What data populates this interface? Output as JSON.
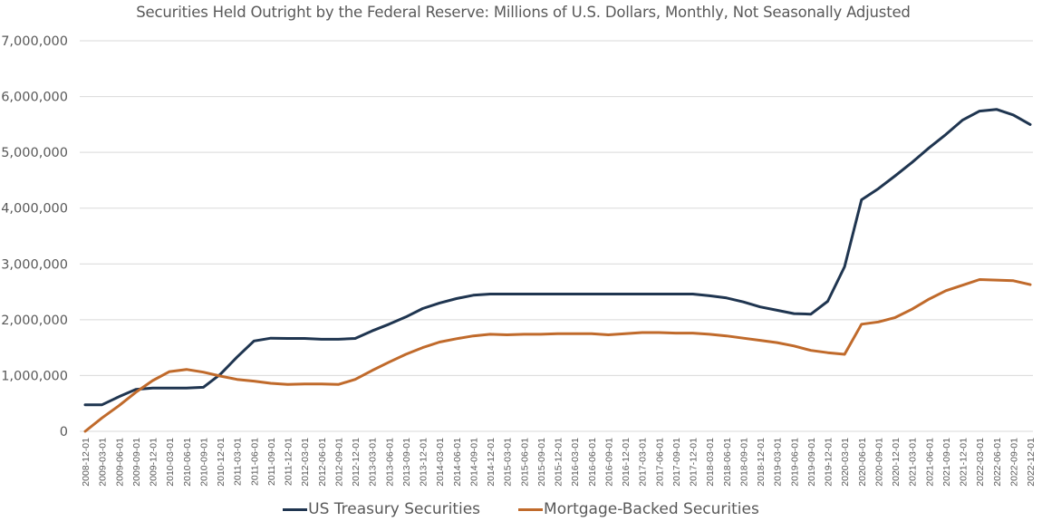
{
  "chart_data": {
    "type": "line",
    "title": "Securities Held Outright by the Federal Reserve: Millions of U.S. Dollars, Monthly, Not Seasonally Adjusted",
    "xlabel": "",
    "ylabel": "",
    "ylim": [
      0,
      7000000
    ],
    "yticks": [
      0,
      1000000,
      2000000,
      3000000,
      4000000,
      5000000,
      6000000,
      7000000
    ],
    "ytick_labels": [
      "0",
      "1,000,000",
      "2,000,000",
      "3,000,000",
      "4,000,000",
      "5,000,000",
      "6,000,000",
      "7,000,000"
    ],
    "grid": true,
    "legend_position": "bottom",
    "x": [
      "2008-12-01",
      "2009-03-01",
      "2009-06-01",
      "2009-09-01",
      "2009-12-01",
      "2010-03-01",
      "2010-06-01",
      "2010-09-01",
      "2010-12-01",
      "2011-03-01",
      "2011-06-01",
      "2011-09-01",
      "2011-12-01",
      "2012-03-01",
      "2012-06-01",
      "2012-09-01",
      "2012-12-01",
      "2013-03-01",
      "2013-06-01",
      "2013-09-01",
      "2013-12-01",
      "2014-03-01",
      "2014-06-01",
      "2014-09-01",
      "2014-12-01",
      "2015-03-01",
      "2015-06-01",
      "2015-09-01",
      "2015-12-01",
      "2016-03-01",
      "2016-06-01",
      "2016-09-01",
      "2016-12-01",
      "2017-03-01",
      "2017-06-01",
      "2017-09-01",
      "2017-12-01",
      "2018-03-01",
      "2018-06-01",
      "2018-09-01",
      "2018-12-01",
      "2019-03-01",
      "2019-06-01",
      "2019-09-01",
      "2019-12-01",
      "2020-03-01",
      "2020-06-01",
      "2020-09-01",
      "2020-12-01",
      "2021-03-01",
      "2021-06-01",
      "2021-09-01",
      "2021-12-01",
      "2022-03-01",
      "2022-06-01",
      "2022-09-01",
      "2022-12-01"
    ],
    "series": [
      {
        "name": "US Treasury Securities",
        "color": "#1f3550",
        "values": [
          476000,
          476000,
          620000,
          750000,
          777000,
          777000,
          777000,
          790000,
          1020000,
          1330000,
          1620000,
          1670000,
          1665000,
          1665000,
          1650000,
          1650000,
          1665000,
          1800000,
          1920000,
          2050000,
          2200000,
          2300000,
          2380000,
          2440000,
          2460000,
          2460000,
          2460000,
          2460000,
          2460000,
          2460000,
          2460000,
          2460000,
          2460000,
          2460000,
          2460000,
          2460000,
          2460000,
          2430000,
          2390000,
          2320000,
          2230000,
          2170000,
          2110000,
          2100000,
          2330000,
          2950000,
          4150000,
          4350000,
          4580000,
          4820000,
          5080000,
          5320000,
          5580000,
          5740000,
          5770000,
          5670000,
          5500000
        ]
      },
      {
        "name": "Mortgage-Backed Securities",
        "color": "#c06a2b",
        "values": [
          0,
          240000,
          460000,
          700000,
          910000,
          1070000,
          1110000,
          1060000,
          990000,
          930000,
          900000,
          860000,
          840000,
          850000,
          850000,
          840000,
          930000,
          1090000,
          1240000,
          1380000,
          1500000,
          1600000,
          1660000,
          1710000,
          1740000,
          1730000,
          1740000,
          1740000,
          1750000,
          1750000,
          1750000,
          1730000,
          1750000,
          1770000,
          1770000,
          1760000,
          1760000,
          1740000,
          1710000,
          1670000,
          1630000,
          1590000,
          1530000,
          1450000,
          1410000,
          1380000,
          1920000,
          1960000,
          2040000,
          2190000,
          2370000,
          2520000,
          2620000,
          2720000,
          2710000,
          2700000,
          2630000
        ]
      }
    ]
  }
}
